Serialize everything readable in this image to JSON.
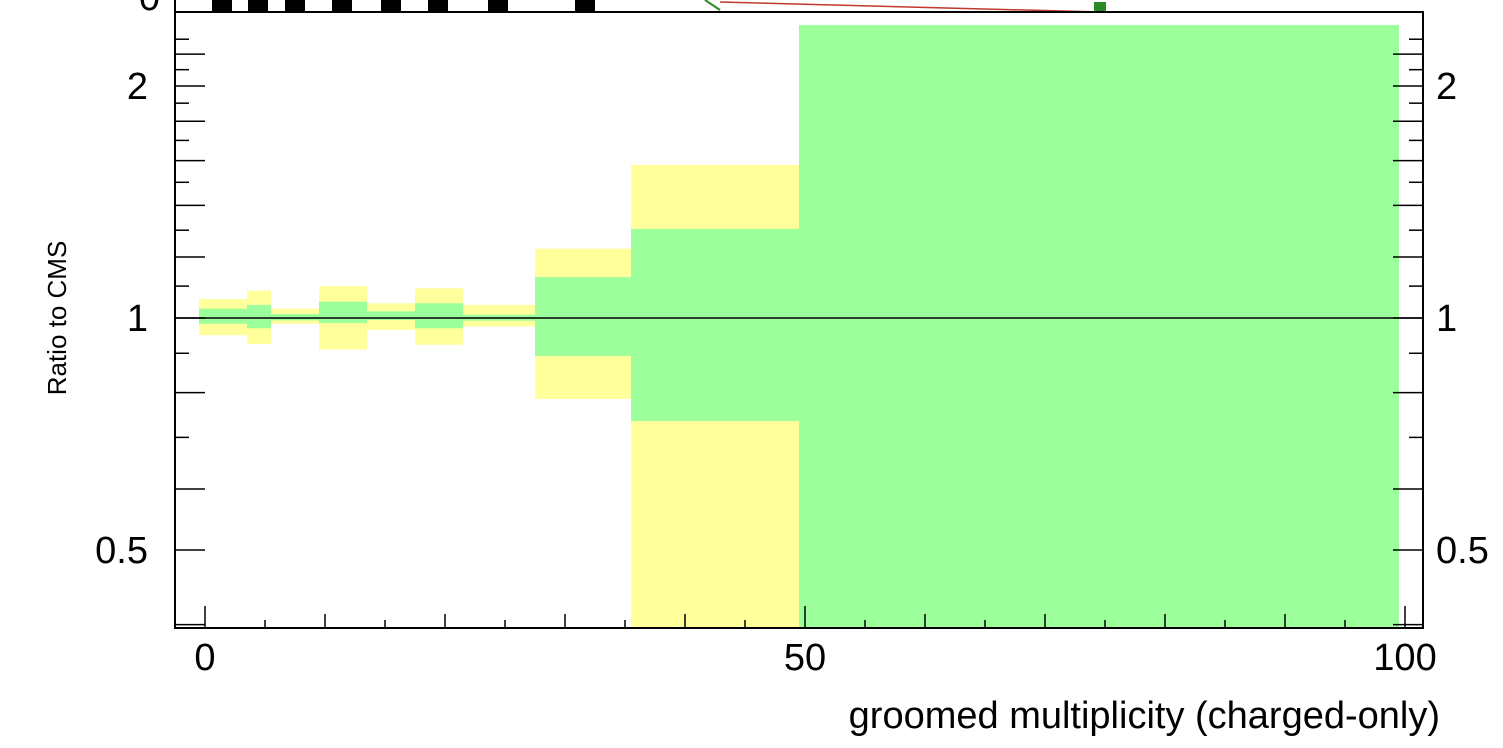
{
  "chart_data": {
    "type": "area",
    "title": "",
    "xlabel": "groomed multiplicity (charged-only)",
    "ylabel": "Ratio to CMS",
    "xlim": [
      -2.5,
      101.5
    ],
    "ylim": [
      0.36,
      2.4
    ],
    "y_scale": "log",
    "x_ticks_major": [
      0,
      50,
      100
    ],
    "x_tick_labels": [
      "0",
      "50",
      "100"
    ],
    "y_ticks_labeled": [
      0.5,
      1,
      2
    ],
    "y_tick_labels": [
      "0.5",
      "1",
      "2"
    ],
    "top_panel_cut_label": "0",
    "reference_line": 1,
    "grid": false,
    "colors": {
      "inner_band": "#9cff9c",
      "outer_band": "#ffff9c",
      "marker": "#000000",
      "line": "#000000"
    },
    "series": [
      {
        "name": "",
        "role": "stat-uncertainty",
        "bins": [
          {
            "x0": -0.5,
            "x1": 3.5,
            "low": 0.983,
            "high": 1.028
          },
          {
            "x0": 3.5,
            "x1": 5.5,
            "low": 0.97,
            "high": 1.04
          },
          {
            "x0": 5.5,
            "x1": 9.5,
            "low": 0.993,
            "high": 1.012
          },
          {
            "x0": 9.5,
            "x1": 13.5,
            "low": 0.985,
            "high": 1.05
          },
          {
            "x0": 13.5,
            "x1": 17.5,
            "low": 0.994,
            "high": 1.02
          },
          {
            "x0": 17.5,
            "x1": 21.5,
            "low": 0.97,
            "high": 1.045
          },
          {
            "x0": 21.5,
            "x1": 27.5,
            "low": 0.992,
            "high": 1.01
          },
          {
            "x0": 27.5,
            "x1": 35.5,
            "low": 0.893,
            "high": 1.13
          },
          {
            "x0": 35.5,
            "x1": 49.5,
            "low": 0.735,
            "high": 1.305
          },
          {
            "x0": 49.5,
            "x1": 99.5,
            "low": 0.36,
            "high": 2.4
          }
        ]
      },
      {
        "name": "",
        "role": "total-uncertainty",
        "bins": [
          {
            "x0": -0.5,
            "x1": 3.5,
            "low": 0.95,
            "high": 1.058
          },
          {
            "x0": 3.5,
            "x1": 5.5,
            "low": 0.925,
            "high": 1.085
          },
          {
            "x0": 5.5,
            "x1": 9.5,
            "low": 0.983,
            "high": 1.028
          },
          {
            "x0": 9.5,
            "x1": 13.5,
            "low": 0.91,
            "high": 1.1
          },
          {
            "x0": 13.5,
            "x1": 17.5,
            "low": 0.965,
            "high": 1.045
          },
          {
            "x0": 17.5,
            "x1": 21.5,
            "low": 0.923,
            "high": 1.093
          },
          {
            "x0": 21.5,
            "x1": 27.5,
            "low": 0.975,
            "high": 1.04
          },
          {
            "x0": 27.5,
            "x1": 35.5,
            "low": 0.785,
            "high": 1.23
          },
          {
            "x0": 35.5,
            "x1": 49.5,
            "low": 0.375,
            "high": 1.58
          },
          {
            "x0": 49.5,
            "x1": 99.5,
            "low": 0.36,
            "high": 2.4
          }
        ]
      }
    ]
  }
}
